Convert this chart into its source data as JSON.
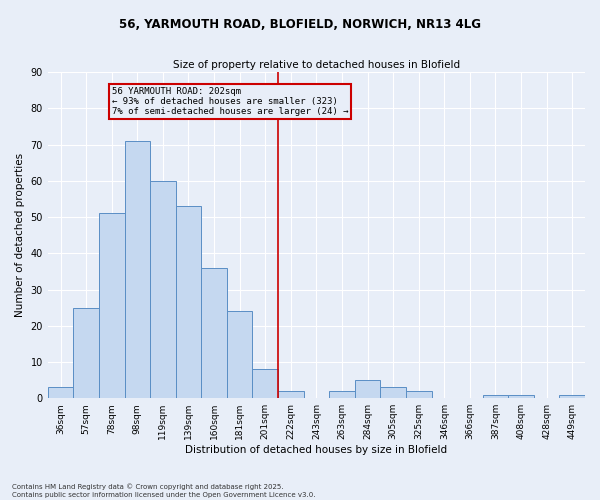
{
  "title_line1": "56, YARMOUTH ROAD, BLOFIELD, NORWICH, NR13 4LG",
  "title_line2": "Size of property relative to detached houses in Blofield",
  "xlabel": "Distribution of detached houses by size in Blofield",
  "ylabel": "Number of detached properties",
  "categories": [
    "36sqm",
    "57sqm",
    "78sqm",
    "98sqm",
    "119sqm",
    "139sqm",
    "160sqm",
    "181sqm",
    "201sqm",
    "222sqm",
    "243sqm",
    "263sqm",
    "284sqm",
    "305sqm",
    "325sqm",
    "346sqm",
    "366sqm",
    "387sqm",
    "408sqm",
    "428sqm",
    "449sqm"
  ],
  "values": [
    3,
    25,
    51,
    71,
    60,
    53,
    36,
    24,
    8,
    2,
    0,
    2,
    5,
    3,
    2,
    0,
    0,
    1,
    1,
    0,
    1
  ],
  "bar_color": "#c5d8f0",
  "bar_edge_color": "#5a8ec5",
  "background_color": "#e8eef8",
  "vline_x": 8.5,
  "vline_color": "#cc0000",
  "annotation_line1": "56 YARMOUTH ROAD: 202sqm",
  "annotation_line2": "← 93% of detached houses are smaller (323)",
  "annotation_line3": "7% of semi-detached houses are larger (24) →",
  "annotation_box_color": "#cc0000",
  "ylim": [
    0,
    90
  ],
  "yticks": [
    0,
    10,
    20,
    30,
    40,
    50,
    60,
    70,
    80,
    90
  ],
  "grid_color": "#ffffff",
  "footnote": "Contains HM Land Registry data © Crown copyright and database right 2025.\nContains public sector information licensed under the Open Government Licence v3.0."
}
